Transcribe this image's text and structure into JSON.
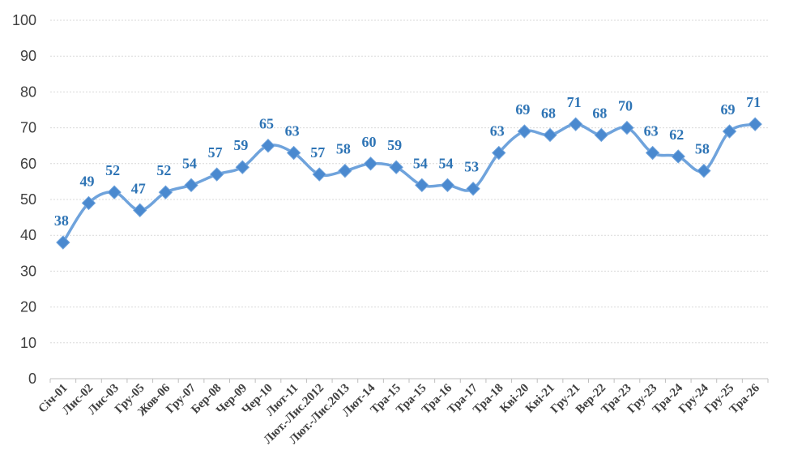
{
  "chart_data": {
    "type": "line",
    "categories": [
      "Січ-01",
      "Лис-02",
      "Лис-03",
      "Гру-05",
      "Жов-06",
      "Гру-07",
      "Бер-08",
      "Чер-09",
      "Чер-10",
      "Лют-11",
      "Лют.-Лис.2012",
      "Лют.-Лис.2013",
      "Лют-14",
      "Тра-15",
      "Тра-15",
      "Тра-16",
      "Тра-17",
      "Тра-18",
      "Кві-20",
      "Кві-21",
      "Гру-21",
      "Вер-22",
      "Тра-23",
      "Гру-23",
      "Тра-24",
      "Гру-24",
      "Гру-25",
      "Тра-26"
    ],
    "series": [
      {
        "values": [
          38,
          49,
          52,
          47,
          52,
          54,
          57,
          59,
          65,
          63,
          57,
          58,
          60,
          59,
          54,
          54,
          53,
          63,
          69,
          68,
          71,
          68,
          70,
          63,
          62,
          58,
          69,
          71
        ]
      }
    ],
    "data_labels": [
      "38",
      "49",
      "52",
      "47",
      "52",
      "54",
      "57",
      "59",
      "65",
      "63",
      "57",
      "58",
      "60",
      "59",
      "54",
      "54",
      "53",
      "63",
      "69",
      "68",
      "71",
      "68",
      "70",
      "63",
      "62",
      "58",
      "69",
      "71"
    ],
    "y_ticks": [
      "0",
      "10",
      "20",
      "30",
      "40",
      "50",
      "60",
      "70",
      "80",
      "90",
      "100"
    ],
    "ylim": [
      0,
      100
    ],
    "grid": true,
    "legend": "none",
    "title": "",
    "xlabel": "",
    "ylabel": "",
    "colors": {
      "line": "#6fa3dc",
      "marker": "#4a89cf",
      "label": "#2e74b5"
    }
  }
}
